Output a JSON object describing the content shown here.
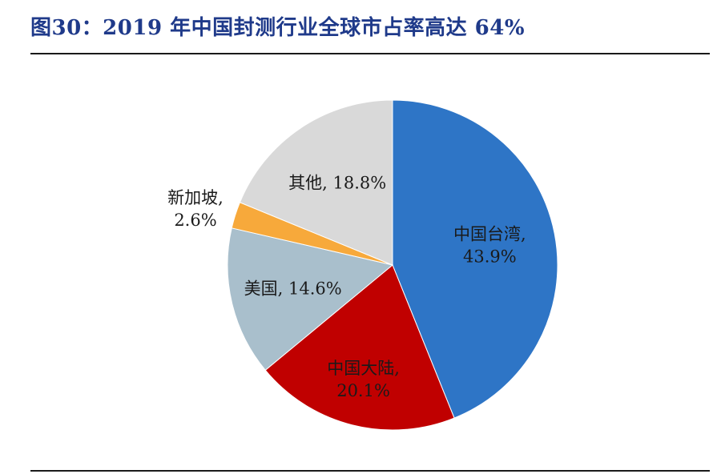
{
  "figure": {
    "title": "图30：2019 年中国封测行业全球市占率高达 64%"
  },
  "chart_data": {
    "type": "pie",
    "title": "",
    "start": "12 o'clock",
    "direction": "clockwise",
    "slices": [
      {
        "label": "中国台湾",
        "value": 43.9,
        "display": "43.9%",
        "color": "#2e75c6"
      },
      {
        "label": "中国大陆",
        "value": 20.1,
        "display": "20.1%",
        "color": "#c00000"
      },
      {
        "label": "美国",
        "value": 14.6,
        "display": "14.6%",
        "color": "#a9bfcc"
      },
      {
        "label": "新加坡",
        "value": 2.6,
        "display": "2.6%",
        "color": "#f7a93b"
      },
      {
        "label": "其他",
        "value": 18.8,
        "display": "18.8%",
        "color": "#d9d9d9"
      }
    ]
  }
}
